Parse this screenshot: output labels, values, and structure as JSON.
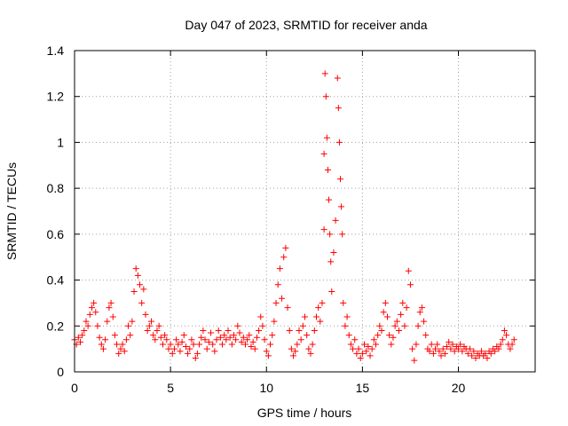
{
  "chart_data": {
    "type": "scatter",
    "title": "Day 047 of 2023, SRMTID for receiver anda",
    "xlabel": "GPS time / hours",
    "ylabel": "SRMTID / TECUs",
    "xlim": [
      0,
      24
    ],
    "ylim": [
      0,
      1.4
    ],
    "xticks": [
      0,
      5,
      10,
      15,
      20
    ],
    "xtick_labels": [
      "0",
      "5",
      "10",
      "15",
      "20"
    ],
    "yticks": [
      0,
      0.2,
      0.4,
      0.6,
      0.8,
      1.0,
      1.2,
      1.4
    ],
    "ytick_labels": [
      "0",
      "0.2",
      "0.4",
      "0.6",
      "0.8",
      "1",
      "1.2",
      "1.4"
    ],
    "grid": true,
    "marker": "+",
    "color": "#ff0000",
    "series": [
      {
        "name": "SRMTID",
        "points": [
          [
            0.0,
            0.14
          ],
          [
            0.1,
            0.12
          ],
          [
            0.2,
            0.15
          ],
          [
            0.3,
            0.13
          ],
          [
            0.4,
            0.16
          ],
          [
            0.5,
            0.18
          ],
          [
            0.6,
            0.22
          ],
          [
            0.7,
            0.2
          ],
          [
            0.8,
            0.25
          ],
          [
            0.9,
            0.28
          ],
          [
            1.0,
            0.3
          ],
          [
            1.1,
            0.26
          ],
          [
            1.2,
            0.2
          ],
          [
            1.3,
            0.15
          ],
          [
            1.4,
            0.12
          ],
          [
            1.5,
            0.1
          ],
          [
            1.6,
            0.14
          ],
          [
            1.7,
            0.22
          ],
          [
            1.8,
            0.28
          ],
          [
            1.9,
            0.3
          ],
          [
            2.0,
            0.24
          ],
          [
            2.1,
            0.16
          ],
          [
            2.2,
            0.12
          ],
          [
            2.3,
            0.08
          ],
          [
            2.4,
            0.1
          ],
          [
            2.5,
            0.12
          ],
          [
            2.6,
            0.09
          ],
          [
            2.7,
            0.14
          ],
          [
            2.8,
            0.2
          ],
          [
            2.9,
            0.16
          ],
          [
            3.0,
            0.22
          ],
          [
            3.1,
            0.35
          ],
          [
            3.2,
            0.45
          ],
          [
            3.3,
            0.42
          ],
          [
            3.4,
            0.38
          ],
          [
            3.5,
            0.3
          ],
          [
            3.6,
            0.36
          ],
          [
            3.7,
            0.25
          ],
          [
            3.8,
            0.18
          ],
          [
            3.9,
            0.2
          ],
          [
            4.0,
            0.22
          ],
          [
            4.1,
            0.16
          ],
          [
            4.2,
            0.14
          ],
          [
            4.3,
            0.18
          ],
          [
            4.4,
            0.2
          ],
          [
            4.5,
            0.15
          ],
          [
            4.6,
            0.12
          ],
          [
            4.7,
            0.16
          ],
          [
            4.8,
            0.14
          ],
          [
            4.9,
            0.1
          ],
          [
            5.0,
            0.12
          ],
          [
            5.1,
            0.08
          ],
          [
            5.2,
            0.1
          ],
          [
            5.3,
            0.14
          ],
          [
            5.4,
            0.12
          ],
          [
            5.5,
            0.09
          ],
          [
            5.6,
            0.13
          ],
          [
            5.7,
            0.16
          ],
          [
            5.8,
            0.11
          ],
          [
            5.9,
            0.08
          ],
          [
            6.0,
            0.1
          ],
          [
            6.1,
            0.14
          ],
          [
            6.2,
            0.12
          ],
          [
            6.3,
            0.06
          ],
          [
            6.4,
            0.08
          ],
          [
            6.5,
            0.12
          ],
          [
            6.6,
            0.15
          ],
          [
            6.7,
            0.18
          ],
          [
            6.8,
            0.14
          ],
          [
            6.9,
            0.1
          ],
          [
            7.0,
            0.13
          ],
          [
            7.1,
            0.17
          ],
          [
            7.2,
            0.12
          ],
          [
            7.3,
            0.09
          ],
          [
            7.4,
            0.14
          ],
          [
            7.5,
            0.18
          ],
          [
            7.6,
            0.15
          ],
          [
            7.7,
            0.12
          ],
          [
            7.8,
            0.16
          ],
          [
            7.9,
            0.14
          ],
          [
            8.0,
            0.18
          ],
          [
            8.1,
            0.15
          ],
          [
            8.2,
            0.12
          ],
          [
            8.3,
            0.16
          ],
          [
            8.4,
            0.14
          ],
          [
            8.5,
            0.2
          ],
          [
            8.6,
            0.17
          ],
          [
            8.7,
            0.13
          ],
          [
            8.8,
            0.15
          ],
          [
            8.9,
            0.12
          ],
          [
            9.0,
            0.14
          ],
          [
            9.1,
            0.16
          ],
          [
            9.2,
            0.11
          ],
          [
            9.3,
            0.13
          ],
          [
            9.4,
            0.1
          ],
          [
            9.5,
            0.15
          ],
          [
            9.6,
            0.18
          ],
          [
            9.7,
            0.24
          ],
          [
            9.8,
            0.2
          ],
          [
            9.9,
            0.14
          ],
          [
            10.0,
            0.09
          ],
          [
            10.1,
            0.07
          ],
          [
            10.2,
            0.12
          ],
          [
            10.3,
            0.16
          ],
          [
            10.4,
            0.22
          ],
          [
            10.5,
            0.3
          ],
          [
            10.6,
            0.38
          ],
          [
            10.7,
            0.45
          ],
          [
            10.8,
            0.32
          ],
          [
            10.9,
            0.5
          ],
          [
            11.0,
            0.54
          ],
          [
            11.1,
            0.28
          ],
          [
            11.2,
            0.18
          ],
          [
            11.3,
            0.1
          ],
          [
            11.4,
            0.07
          ],
          [
            11.5,
            0.09
          ],
          [
            11.6,
            0.12
          ],
          [
            11.7,
            0.18
          ],
          [
            11.8,
            0.14
          ],
          [
            11.9,
            0.2
          ],
          [
            12.0,
            0.24
          ],
          [
            12.1,
            0.16
          ],
          [
            12.2,
            0.1
          ],
          [
            12.3,
            0.08
          ],
          [
            12.4,
            0.12
          ],
          [
            12.5,
            0.18
          ],
          [
            12.6,
            0.24
          ],
          [
            12.7,
            0.28
          ],
          [
            12.8,
            0.22
          ],
          [
            12.9,
            0.3
          ],
          [
            13.0,
            0.62
          ],
          [
            13.0,
            0.95
          ],
          [
            13.05,
            1.3
          ],
          [
            13.1,
            1.2
          ],
          [
            13.15,
            1.02
          ],
          [
            13.2,
            0.88
          ],
          [
            13.25,
            0.75
          ],
          [
            13.3,
            0.6
          ],
          [
            13.35,
            0.48
          ],
          [
            13.4,
            0.35
          ],
          [
            13.5,
            0.52
          ],
          [
            13.6,
            0.66
          ],
          [
            13.7,
            1.28
          ],
          [
            13.75,
            1.15
          ],
          [
            13.8,
            1.0
          ],
          [
            13.85,
            0.84
          ],
          [
            13.9,
            0.72
          ],
          [
            13.95,
            0.6
          ],
          [
            14.0,
            0.3
          ],
          [
            14.1,
            0.2
          ],
          [
            14.2,
            0.24
          ],
          [
            14.3,
            0.16
          ],
          [
            14.4,
            0.12
          ],
          [
            14.5,
            0.1
          ],
          [
            14.6,
            0.14
          ],
          [
            14.7,
            0.08
          ],
          [
            14.8,
            0.1
          ],
          [
            14.9,
            0.06
          ],
          [
            15.0,
            0.08
          ],
          [
            15.1,
            0.12
          ],
          [
            15.2,
            0.09
          ],
          [
            15.3,
            0.11
          ],
          [
            15.4,
            0.07
          ],
          [
            15.5,
            0.1
          ],
          [
            15.6,
            0.14
          ],
          [
            15.7,
            0.12
          ],
          [
            15.8,
            0.16
          ],
          [
            15.9,
            0.2
          ],
          [
            16.0,
            0.18
          ],
          [
            16.1,
            0.26
          ],
          [
            16.2,
            0.3
          ],
          [
            16.3,
            0.24
          ],
          [
            16.4,
            0.16
          ],
          [
            16.5,
            0.12
          ],
          [
            16.6,
            0.15
          ],
          [
            16.7,
            0.2
          ],
          [
            16.8,
            0.22
          ],
          [
            16.9,
            0.18
          ],
          [
            17.0,
            0.25
          ],
          [
            17.1,
            0.3
          ],
          [
            17.2,
            0.2
          ],
          [
            17.3,
            0.28
          ],
          [
            17.4,
            0.44
          ],
          [
            17.5,
            0.38
          ],
          [
            17.6,
            0.1
          ],
          [
            17.7,
            0.05
          ],
          [
            17.8,
            0.12
          ],
          [
            17.9,
            0.2
          ],
          [
            18.0,
            0.26
          ],
          [
            18.1,
            0.28
          ],
          [
            18.2,
            0.22
          ],
          [
            18.3,
            0.16
          ],
          [
            18.4,
            0.1
          ],
          [
            18.5,
            0.09
          ],
          [
            18.6,
            0.12
          ],
          [
            18.7,
            0.08
          ],
          [
            18.8,
            0.1
          ],
          [
            18.9,
            0.12
          ],
          [
            19.0,
            0.09
          ],
          [
            19.1,
            0.07
          ],
          [
            19.2,
            0.1
          ],
          [
            19.3,
            0.08
          ],
          [
            19.4,
            0.11
          ],
          [
            19.5,
            0.13
          ],
          [
            19.6,
            0.1
          ],
          [
            19.7,
            0.12
          ],
          [
            19.8,
            0.09
          ],
          [
            19.9,
            0.11
          ],
          [
            20.0,
            0.1
          ],
          [
            20.1,
            0.12
          ],
          [
            20.2,
            0.09
          ],
          [
            20.3,
            0.11
          ],
          [
            20.4,
            0.1
          ],
          [
            20.5,
            0.08
          ],
          [
            20.6,
            0.1
          ],
          [
            20.7,
            0.07
          ],
          [
            20.8,
            0.09
          ],
          [
            20.9,
            0.06
          ],
          [
            21.0,
            0.08
          ],
          [
            21.1,
            0.07
          ],
          [
            21.2,
            0.09
          ],
          [
            21.3,
            0.07
          ],
          [
            21.4,
            0.08
          ],
          [
            21.5,
            0.06
          ],
          [
            21.6,
            0.09
          ],
          [
            21.7,
            0.08
          ],
          [
            21.8,
            0.1
          ],
          [
            21.9,
            0.09
          ],
          [
            22.0,
            0.11
          ],
          [
            22.1,
            0.1
          ],
          [
            22.2,
            0.12
          ],
          [
            22.3,
            0.14
          ],
          [
            22.4,
            0.18
          ],
          [
            22.5,
            0.16
          ],
          [
            22.6,
            0.12
          ],
          [
            22.7,
            0.1
          ],
          [
            22.8,
            0.12
          ],
          [
            22.9,
            0.14
          ]
        ]
      }
    ]
  }
}
